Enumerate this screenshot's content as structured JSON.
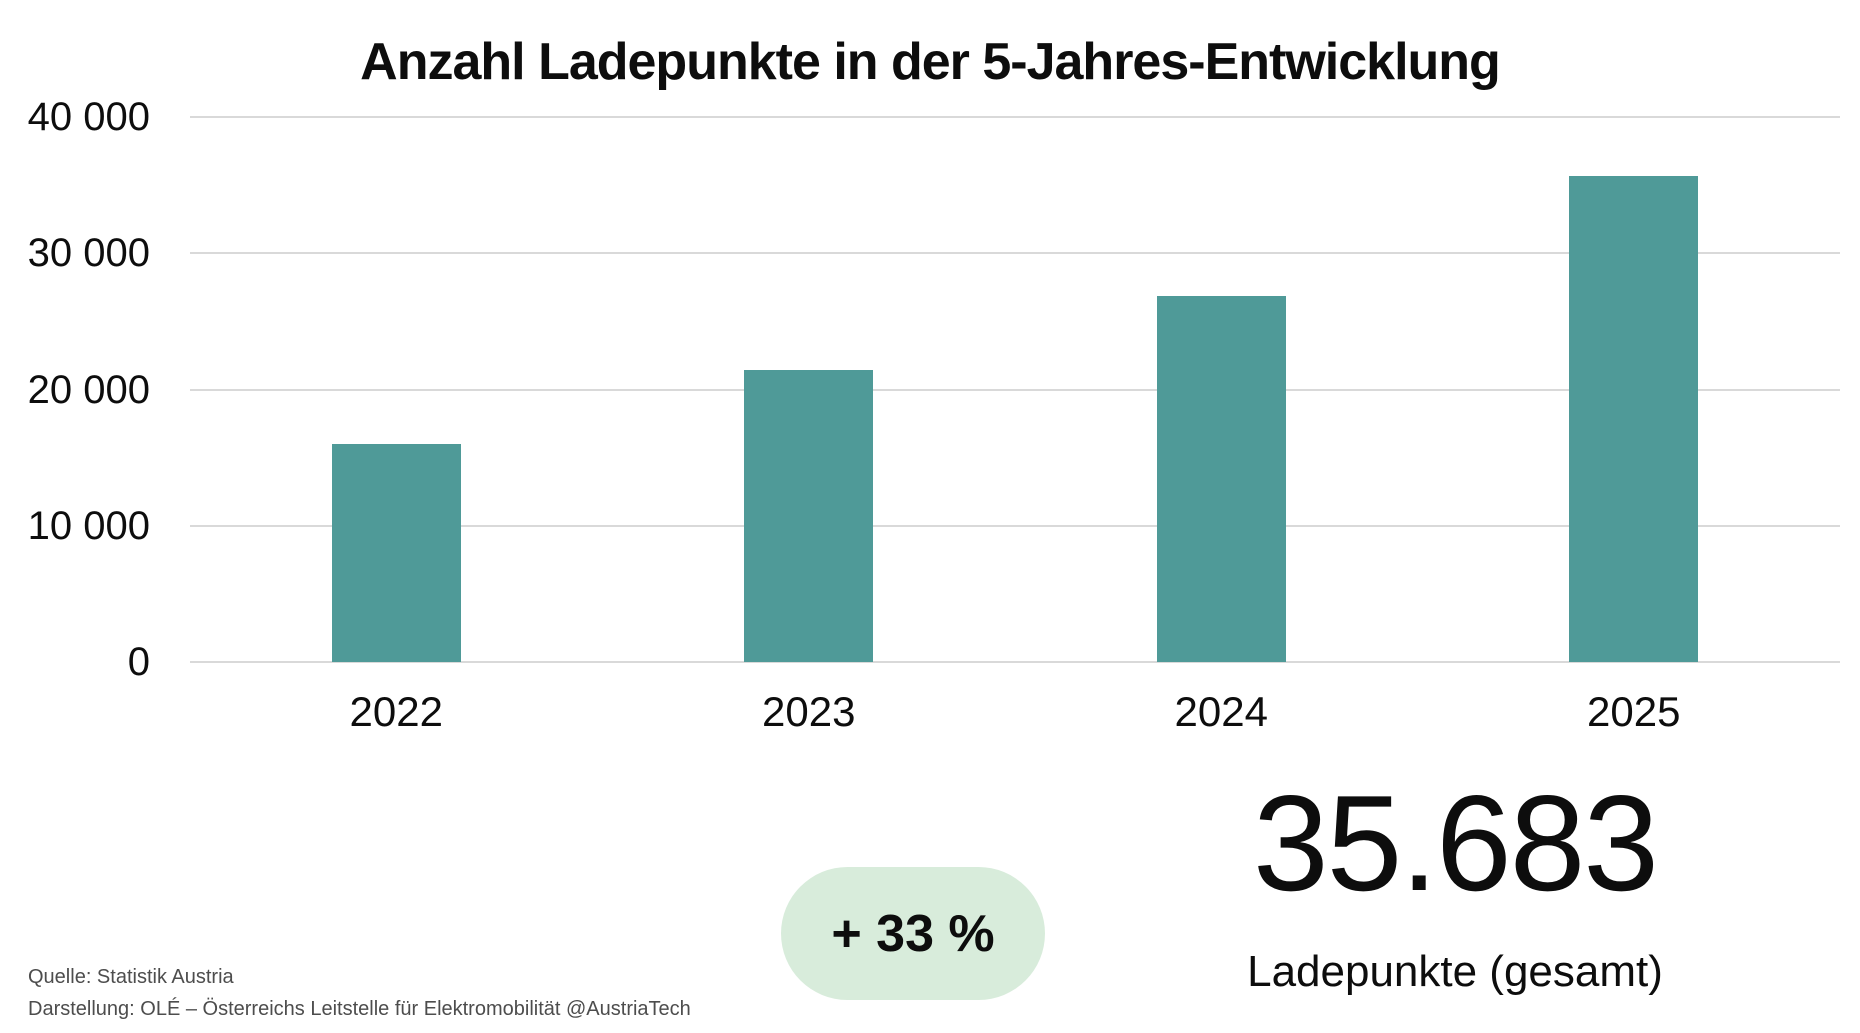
{
  "title": "Anzahl Ladepunkte in der 5-Jahres-Entwicklung",
  "chart_data": {
    "type": "bar",
    "categories": [
      "2022",
      "2023",
      "2024",
      "2025"
    ],
    "values": [
      16000,
      21400,
      26830,
      35683
    ],
    "title": "Anzahl Ladepunkte in der 5-Jahres-Entwicklung",
    "xlabel": "",
    "ylabel": "",
    "ylim": [
      0,
      40000
    ],
    "yticks": [
      {
        "value": 40000,
        "label": "40 000"
      },
      {
        "value": 30000,
        "label": "30 000"
      },
      {
        "value": 20000,
        "label": "20 000"
      },
      {
        "value": 10000,
        "label": "10 000"
      },
      {
        "value": 0,
        "label": "0"
      }
    ],
    "grid": true,
    "legend": "none",
    "bar_color": "#4f9a98",
    "gridline_color": "#d9d9d9"
  },
  "highlight": {
    "badge_label": "+ 33 %",
    "badge_bg": "#d8ecdb",
    "total_value": "35.683",
    "total_caption": "Ladepunkte (gesamt)"
  },
  "footer": {
    "source": "Quelle: Statistik Austria",
    "credit": "Darstellung: OLÉ – Österreichs Leitstelle für Elektromobilität @AustriaTech"
  }
}
